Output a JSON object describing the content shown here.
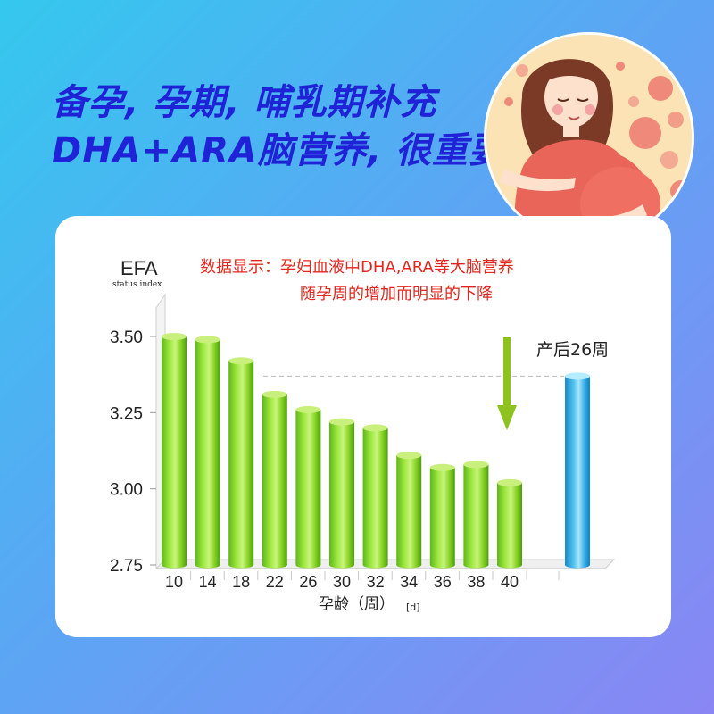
{
  "headline": {
    "line1": "备孕, 孕期, 哺乳期补充",
    "line2": "DHA+ARA脑营养, 很重要!"
  },
  "note": {
    "line1": "数据显示：孕妇血液中DHA,ARA等大脑营养",
    "line2": "随孕周的增加而明显的下降"
  },
  "colors": {
    "headline": "#1f22d6",
    "note": "#e3261d",
    "bar_green": "#7fd31e",
    "bar_blue": "#29a8e4",
    "arrow": "#8dc21f"
  },
  "chart_data": {
    "type": "bar",
    "ylabel": "EFA",
    "ylabel_sub": "status index",
    "xlabel": "孕龄（周）",
    "xlabel_unit": "[d]",
    "ylim": [
      2.75,
      3.5
    ],
    "yticks": [
      "3.50",
      "3.25",
      "3.00",
      "2.75"
    ],
    "categories": [
      "10",
      "14",
      "18",
      "22",
      "26",
      "30",
      "32",
      "34",
      "36",
      "38",
      "40"
    ],
    "values": [
      3.5,
      3.49,
      3.42,
      3.31,
      3.26,
      3.22,
      3.2,
      3.11,
      3.07,
      3.08,
      3.02
    ],
    "postpartum": {
      "label": "产后26周",
      "value": 3.37
    },
    "reference_line": 3.37,
    "grid": false
  }
}
